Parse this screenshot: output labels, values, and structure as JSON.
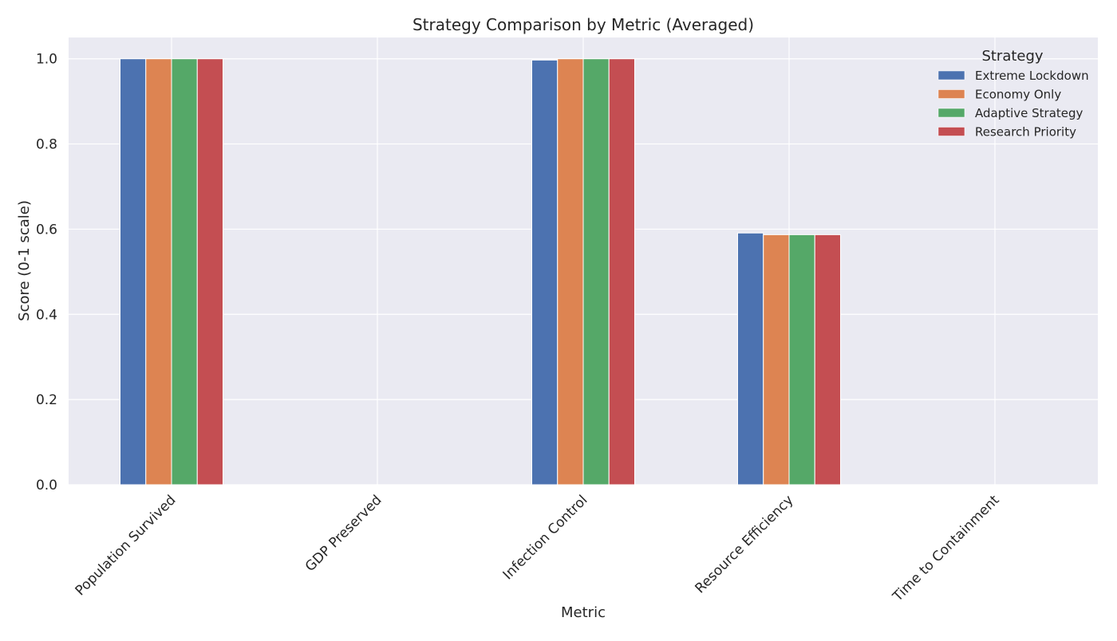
{
  "chart_data": {
    "type": "bar",
    "title": "Strategy Comparison by Metric (Averaged)",
    "xlabel": "Metric",
    "ylabel": "Score (0-1 scale)",
    "ylim": [
      0,
      1.05
    ],
    "yticks": [
      0.0,
      0.2,
      0.4,
      0.6,
      0.8,
      1.0
    ],
    "ytick_labels": [
      "0.0",
      "0.2",
      "0.4",
      "0.6",
      "0.8",
      "1.0"
    ],
    "categories": [
      "Population Survived",
      "GDP Preserved",
      "Infection Control",
      "Resource Efficiency",
      "Time to Containment"
    ],
    "series": [
      {
        "name": "Extreme Lockdown",
        "color": "#4c72b0",
        "values": [
          1.0,
          0.0,
          0.997,
          0.591,
          0.0
        ]
      },
      {
        "name": "Economy Only",
        "color": "#dd8452",
        "values": [
          1.0,
          0.0,
          1.0,
          0.587,
          0.0
        ]
      },
      {
        "name": "Adaptive Strategy",
        "color": "#55a868",
        "values": [
          1.0,
          0.0,
          1.0,
          0.587,
          0.0
        ]
      },
      {
        "name": "Research Priority",
        "color": "#c44e52",
        "values": [
          1.0,
          0.0,
          1.0,
          0.587,
          0.0
        ]
      }
    ],
    "grid": true,
    "legend": {
      "title": "Strategy",
      "position": "top-right"
    },
    "background_color": "#eaeaf2",
    "grid_color": "#ffffff"
  }
}
